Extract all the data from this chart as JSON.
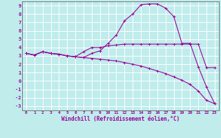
{
  "xlabel": "Windchill (Refroidissement éolien,°C)",
  "background_color": "#c0ecec",
  "grid_color": "#aadddd",
  "line_color": "#990099",
  "spine_color": "#666666",
  "xlim": [
    -0.5,
    23.5
  ],
  "ylim": [
    -3.5,
    9.5
  ],
  "xticks": [
    0,
    1,
    2,
    3,
    4,
    5,
    6,
    7,
    8,
    9,
    10,
    11,
    12,
    13,
    14,
    15,
    16,
    17,
    18,
    19,
    20,
    21,
    22,
    23
  ],
  "yticks": [
    -3,
    -2,
    -1,
    0,
    1,
    2,
    3,
    4,
    5,
    6,
    7,
    8,
    9
  ],
  "line1_x": [
    0,
    1,
    2,
    3,
    4,
    5,
    6,
    7,
    8,
    9,
    10,
    11,
    12,
    13,
    14,
    15,
    16,
    17,
    18,
    19,
    20,
    21,
    22,
    23
  ],
  "line1_y": [
    3.3,
    3.1,
    3.5,
    3.3,
    3.2,
    3.0,
    2.9,
    2.8,
    3.3,
    3.6,
    4.5,
    5.5,
    7.2,
    8.0,
    9.1,
    9.2,
    9.2,
    8.7,
    7.7,
    4.5,
    4.5,
    1.7,
    -0.7,
    -2.7
  ],
  "line2_x": [
    0,
    1,
    2,
    3,
    4,
    5,
    6,
    7,
    8,
    9,
    10,
    11,
    12,
    13,
    14,
    15,
    16,
    17,
    18,
    19,
    20,
    21,
    22,
    23
  ],
  "line2_y": [
    3.3,
    3.1,
    3.5,
    3.3,
    3.2,
    3.0,
    2.9,
    3.5,
    4.0,
    4.0,
    4.2,
    4.3,
    4.4,
    4.4,
    4.4,
    4.4,
    4.4,
    4.4,
    4.4,
    4.4,
    4.4,
    4.4,
    1.6,
    1.6
  ],
  "line3_x": [
    0,
    1,
    2,
    3,
    4,
    5,
    6,
    7,
    8,
    9,
    10,
    11,
    12,
    13,
    14,
    15,
    16,
    17,
    18,
    19,
    20,
    21,
    22,
    23
  ],
  "line3_y": [
    3.3,
    3.1,
    3.5,
    3.3,
    3.2,
    3.0,
    2.9,
    2.8,
    2.7,
    2.6,
    2.5,
    2.4,
    2.2,
    2.0,
    1.8,
    1.5,
    1.2,
    0.9,
    0.5,
    0.1,
    -0.4,
    -1.2,
    -2.3,
    -2.7
  ]
}
